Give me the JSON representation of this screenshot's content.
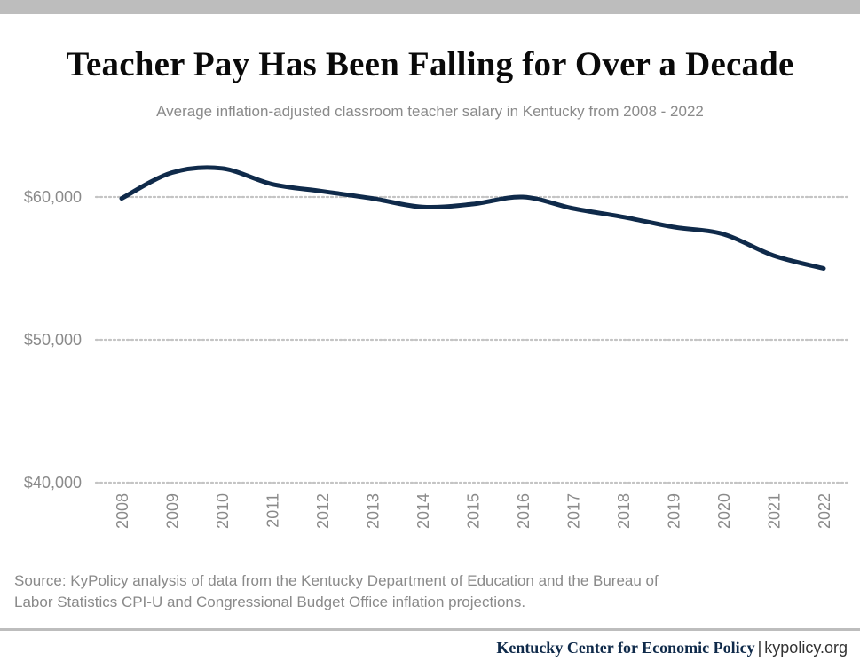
{
  "header": {
    "title": "Teacher Pay Has Been Falling for Over a Decade",
    "subtitle": "Average inflation-adjusted classroom teacher salary in Kentucky from 2008 - 2022"
  },
  "source": {
    "line1": "Source: KyPolicy analysis of data from the Kentucky Department of Education and the Bureau of",
    "line2": "Labor Statistics CPI-U and Congressional Budget Office inflation projections."
  },
  "footer": {
    "org": "Kentucky Center for Economic Policy",
    "separator": "|",
    "url": "kypolicy.org"
  },
  "colors": {
    "line": "#0f2a4a",
    "grid": "#c4c4c4",
    "tick_text": "#8a8a8a",
    "rule": "#bdbdbd"
  },
  "chart_data": {
    "type": "line",
    "title": "Teacher Pay Has Been Falling for Over a Decade",
    "subtitle": "Average inflation-adjusted classroom teacher salary in Kentucky from 2008 - 2022",
    "xlabel": "",
    "ylabel": "",
    "categories": [
      "2008",
      "2009",
      "2010",
      "2011",
      "2012",
      "2013",
      "2014",
      "2015",
      "2016",
      "2017",
      "2018",
      "2019",
      "2020",
      "2021",
      "2022"
    ],
    "series": [
      {
        "values": [
          59900,
          61700,
          62000,
          60900,
          60400,
          59900,
          59300,
          59500,
          60000,
          59200,
          58600,
          57900,
          57400,
          55900,
          55000
        ]
      }
    ],
    "yticks": [
      40000,
      50000,
      60000
    ],
    "ytick_labels": [
      "$40,000",
      "$50,000",
      "$60,000"
    ],
    "ylim": [
      40000,
      60000
    ],
    "grid": "horizontal dotted",
    "legend": "none"
  }
}
